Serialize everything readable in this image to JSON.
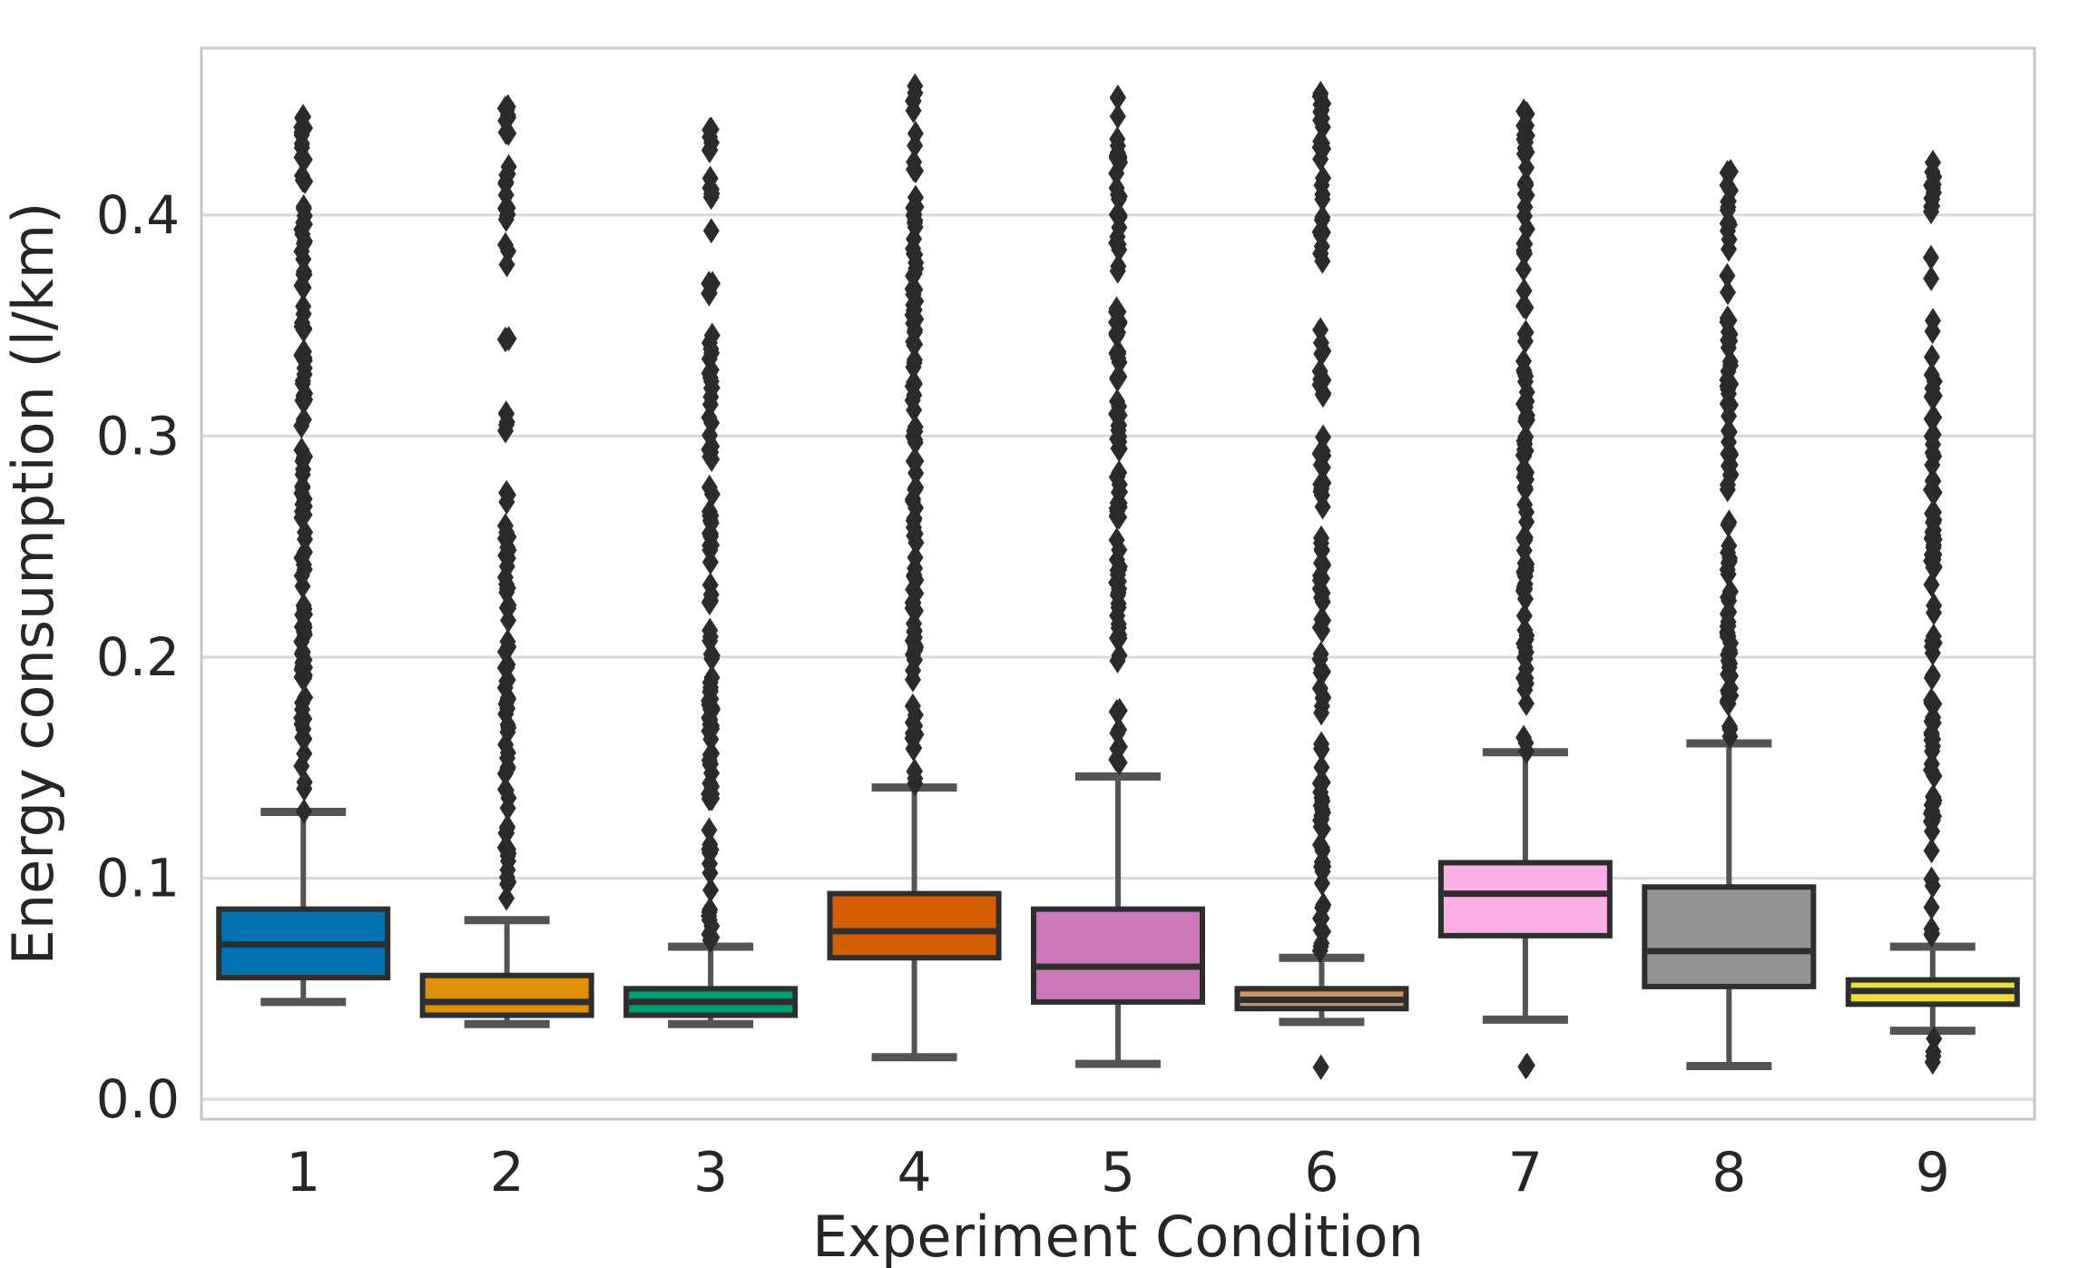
{
  "chart_data": {
    "type": "box",
    "title": "",
    "xlabel": "Experiment Condition",
    "ylabel": "Energy consumption (l/km)",
    "categories": [
      "1",
      "2",
      "3",
      "4",
      "5",
      "6",
      "7",
      "8",
      "9"
    ],
    "yticks": [
      0.0,
      0.1,
      0.2,
      0.3,
      0.4
    ],
    "ytick_labels": [
      "0.0",
      "0.1",
      "0.2",
      "0.3",
      "0.4"
    ],
    "ylim": [
      -0.009,
      0.4755
    ],
    "grid": true,
    "legend": "none",
    "palette": [
      "#0173b2",
      "#de8f05",
      "#029e73",
      "#d55e00",
      "#cc78bc",
      "#ca9161",
      "#fbafe4",
      "#949494",
      "#ece133"
    ],
    "boxes": [
      {
        "category": "1",
        "color": "#0173b2",
        "whisker_low": 0.044,
        "q1": 0.055,
        "median": 0.07,
        "q3": 0.086,
        "whisker_high": 0.13,
        "outlier_bands": [
          [
            0.13,
            0.272,
            50
          ],
          [
            0.272,
            0.285,
            5
          ],
          [
            0.285,
            0.337,
            18
          ],
          [
            0.337,
            0.42,
            29
          ],
          [
            0.425,
            0.445,
            10
          ]
        ]
      },
      {
        "category": "2",
        "color": "#de8f05",
        "whisker_low": 0.034,
        "q1": 0.038,
        "median": 0.044,
        "q3": 0.056,
        "whisker_high": 0.081,
        "outlier_bands": [
          [
            0.081,
            0.276,
            68
          ],
          [
            0.298,
            0.312,
            5
          ],
          [
            0.341,
            0.352,
            3
          ],
          [
            0.375,
            0.388,
            3
          ],
          [
            0.397,
            0.427,
            11
          ],
          [
            0.432,
            0.451,
            8
          ]
        ]
      },
      {
        "category": "3",
        "color": "#029e73",
        "whisker_low": 0.034,
        "q1": 0.038,
        "median": 0.044,
        "q3": 0.05,
        "whisker_high": 0.069,
        "outlier_bands": [
          [
            0.069,
            0.3,
            80
          ],
          [
            0.3,
            0.335,
            12
          ],
          [
            0.335,
            0.346,
            4
          ],
          [
            0.358,
            0.4,
            5
          ],
          [
            0.405,
            0.44,
            12
          ]
        ]
      },
      {
        "category": "4",
        "color": "#d55e00",
        "whisker_low": 0.019,
        "q1": 0.064,
        "median": 0.076,
        "q3": 0.093,
        "whisker_high": 0.141,
        "outlier_bands": [
          [
            0.141,
            0.317,
            61
          ],
          [
            0.317,
            0.329,
            4
          ],
          [
            0.329,
            0.343,
            6
          ],
          [
            0.343,
            0.459,
            40
          ]
        ]
      },
      {
        "category": "5",
        "color": "#cc78bc",
        "whisker_low": 0.016,
        "q1": 0.044,
        "median": 0.06,
        "q3": 0.086,
        "whisker_high": 0.146,
        "outlier_bands": [
          [
            0.146,
            0.339,
            67
          ],
          [
            0.345,
            0.367,
            9
          ],
          [
            0.368,
            0.388,
            5
          ],
          [
            0.388,
            0.459,
            25
          ]
        ]
      },
      {
        "category": "6",
        "color": "#ca9161",
        "whisker_low": 0.035,
        "q1": 0.041,
        "median": 0.045,
        "q3": 0.05,
        "whisker_high": 0.064,
        "outlier_bands": [
          [
            0.063,
            0.28,
            76
          ],
          [
            0.285,
            0.305,
            7
          ],
          [
            0.318,
            0.35,
            11
          ],
          [
            0.378,
            0.458,
            28
          ],
          [
            0.013,
            0.018,
            2
          ]
        ]
      },
      {
        "category": "7",
        "color": "#fbafe4",
        "whisker_low": 0.036,
        "q1": 0.074,
        "median": 0.093,
        "q3": 0.107,
        "whisker_high": 0.157,
        "outlier_bands": [
          [
            0.157,
            0.447,
            101
          ],
          [
            0.012,
            0.016,
            2
          ]
        ]
      },
      {
        "category": "8",
        "color": "#949494",
        "whisker_low": 0.015,
        "q1": 0.051,
        "median": 0.067,
        "q3": 0.096,
        "whisker_high": 0.161,
        "outlier_bands": [
          [
            0.161,
            0.423,
            91
          ]
        ]
      },
      {
        "category": "9",
        "color": "#ece133",
        "whisker_low": 0.031,
        "q1": 0.043,
        "median": 0.049,
        "q3": 0.054,
        "whisker_high": 0.069,
        "outlier_bands": [
          [
            0.07,
            0.1,
            6
          ],
          [
            0.1,
            0.3,
            70
          ],
          [
            0.3,
            0.33,
            8
          ],
          [
            0.335,
            0.365,
            3
          ],
          [
            0.37,
            0.425,
            14
          ],
          [
            0.016,
            0.03,
            4
          ]
        ]
      }
    ],
    "style": {
      "grid_color": "#d9d9d9",
      "spine_color": "#c6c6c6",
      "box_edge_color": "#2e2e2e",
      "median_color": "#2e2e2e",
      "whisker_color": "#545454",
      "flier_color": "#2b2b2b",
      "text_color": "#262626",
      "background": "#ffffff"
    }
  }
}
